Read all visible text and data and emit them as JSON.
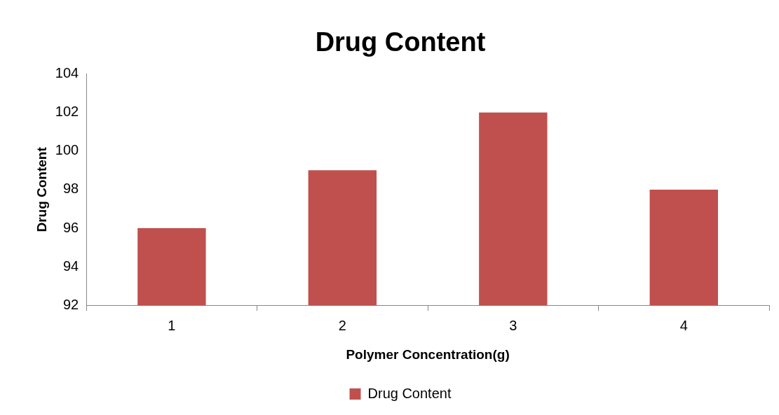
{
  "chart_data": {
    "type": "bar",
    "title": "Drug Content",
    "xlabel": "Polymer Concentration(g)",
    "ylabel": "Drug Content",
    "categories": [
      "1",
      "2",
      "3",
      "4"
    ],
    "series": [
      {
        "name": "Drug Content",
        "color": "#c0504d",
        "values": [
          96,
          99,
          102,
          98
        ]
      }
    ],
    "ylim": [
      92,
      104
    ],
    "yticks": [
      92,
      94,
      96,
      98,
      100,
      102,
      104
    ],
    "grid": false,
    "legend": "bottom"
  }
}
